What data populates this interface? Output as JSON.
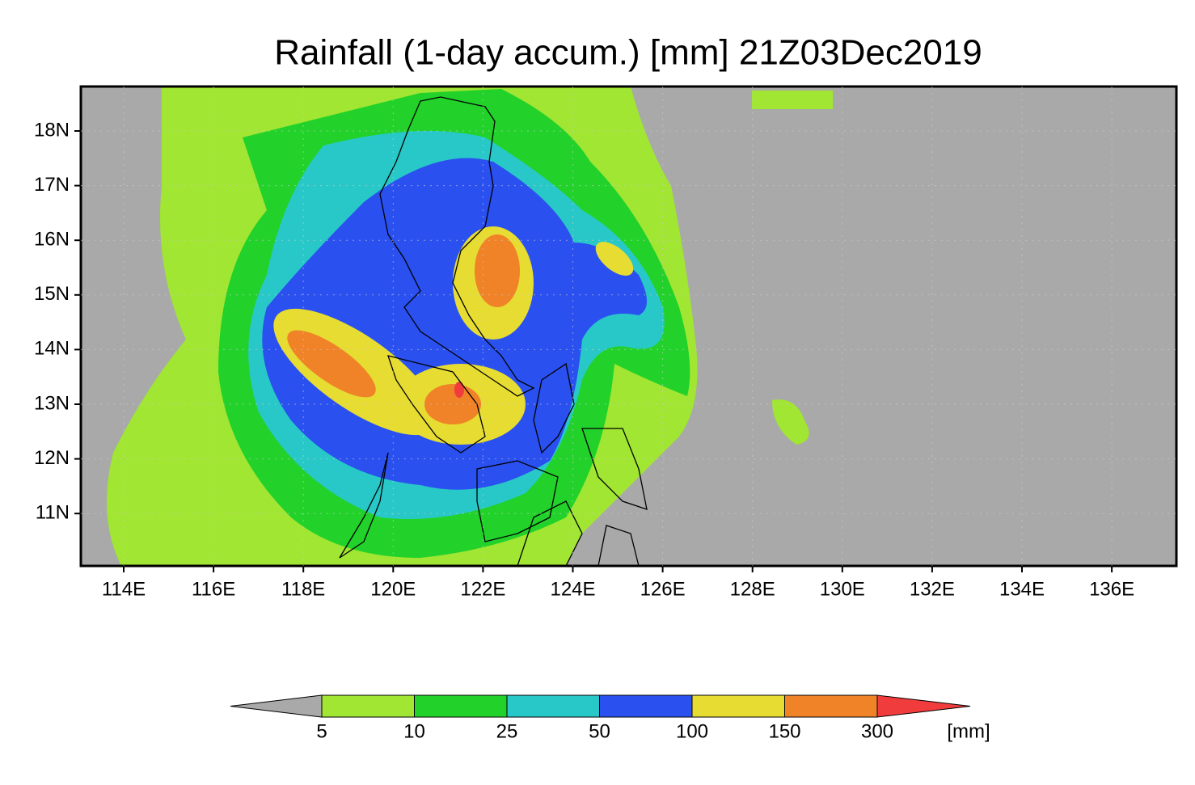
{
  "title": "Rainfall (1-day accum.) [mm] 21Z03Dec2019",
  "map": {
    "lat_labels": [
      "18N",
      "17N",
      "16N",
      "15N",
      "14N",
      "13N",
      "12N",
      "11N"
    ],
    "lon_labels": [
      "114E",
      "116E",
      "118E",
      "120E",
      "122E",
      "124E",
      "126E",
      "128E",
      "130E",
      "132E",
      "134E",
      "136E"
    ]
  },
  "colorbar": {
    "levels": [
      5,
      10,
      25,
      50,
      100,
      150,
      300
    ],
    "unit": "[mm]",
    "colors": [
      "#a9a9a9",
      "#a0e632",
      "#22d22a",
      "#28c8c8",
      "#2a50f0",
      "#e6dc32",
      "#f08228",
      "#f03c3c"
    ]
  }
}
